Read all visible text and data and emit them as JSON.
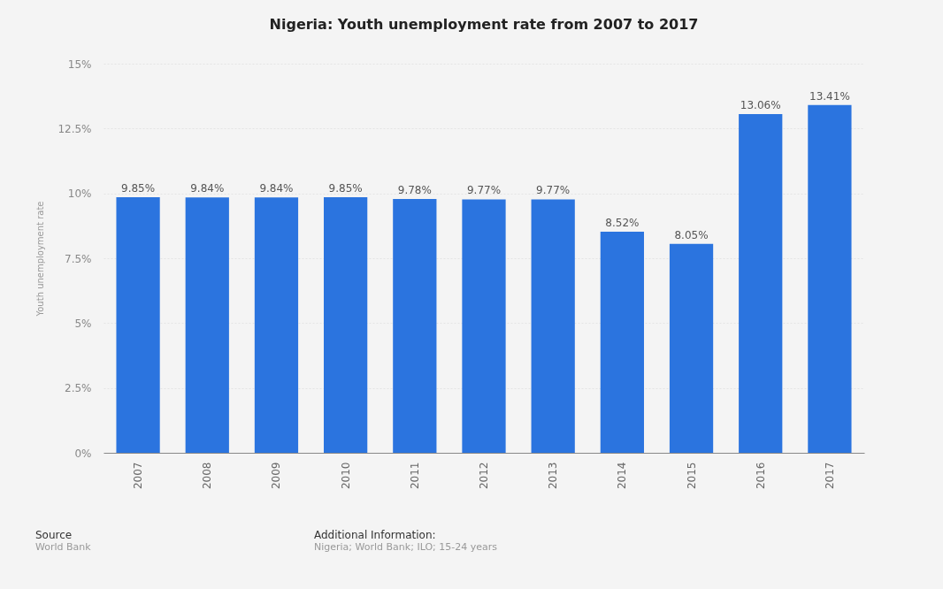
{
  "chart_data": {
    "type": "bar",
    "title": "Nigeria: Youth unemployment rate from 2007 to 2017",
    "ylabel": "Youth unemployment rate",
    "categories": [
      "2007",
      "2008",
      "2009",
      "2010",
      "2011",
      "2012",
      "2013",
      "2014",
      "2015",
      "2016",
      "2017"
    ],
    "values": [
      9.85,
      9.84,
      9.84,
      9.85,
      9.78,
      9.77,
      9.77,
      8.52,
      8.05,
      13.06,
      13.41
    ],
    "value_labels": [
      "9.85%",
      "9.84%",
      "9.84%",
      "9.85%",
      "9.78%",
      "9.77%",
      "9.77%",
      "8.52%",
      "8.05%",
      "13.06%",
      "13.41%"
    ],
    "color": "#2b74df",
    "ylim": [
      0,
      15
    ],
    "yticks": [
      {
        "value": 0,
        "label": "0%"
      },
      {
        "value": 2.5,
        "label": "2.5%"
      },
      {
        "value": 5,
        "label": "5%"
      },
      {
        "value": 7.5,
        "label": "7.5%"
      },
      {
        "value": 10,
        "label": "10%"
      },
      {
        "value": 12.5,
        "label": "12.5%"
      },
      {
        "value": 15,
        "label": "15%"
      }
    ],
    "grid": "y",
    "annotations": [
      "Source",
      "World Bank",
      "Additional Information:",
      "Nigeria; World Bank; ILO; 15-24 years"
    ]
  }
}
